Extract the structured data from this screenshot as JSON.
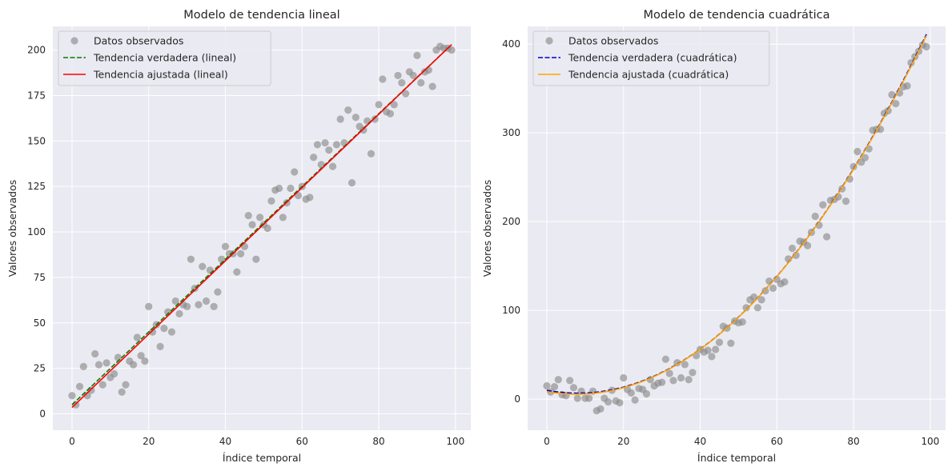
{
  "chart_data": [
    {
      "type": "scatter",
      "title": "Modelo de tendencia lineal",
      "xlabel": "Índice temporal",
      "ylabel": "Valores observados",
      "xlim": [
        -5,
        104
      ],
      "ylim": [
        -9,
        213
      ],
      "xticks": [
        0,
        20,
        40,
        60,
        80,
        100
      ],
      "xtick_labels": [
        "0",
        "20",
        "40",
        "60",
        "80",
        "100"
      ],
      "yticks": [
        0,
        25,
        50,
        75,
        100,
        125,
        150,
        175,
        200
      ],
      "ytick_labels": [
        "0",
        "25",
        "50",
        "75",
        "100",
        "125",
        "150",
        "175",
        "200"
      ],
      "grid": true,
      "legend_position": "top-left",
      "legend": [
        "Datos observados",
        "Tendencia verdadera (lineal)",
        "Tendencia ajustada (lineal)"
      ],
      "colors": {
        "scatter": "#8c8c8c",
        "true": "#008000",
        "fit": "#ff0000"
      },
      "scatter": {
        "name": "Datos observados",
        "x": [
          0,
          1,
          2,
          3,
          4,
          5,
          6,
          7,
          8,
          9,
          10,
          11,
          12,
          13,
          14,
          15,
          16,
          17,
          18,
          19,
          20,
          21,
          22,
          23,
          24,
          25,
          26,
          27,
          28,
          29,
          30,
          31,
          32,
          33,
          34,
          35,
          36,
          37,
          38,
          39,
          40,
          41,
          42,
          43,
          44,
          45,
          46,
          47,
          48,
          49,
          50,
          51,
          52,
          53,
          54,
          55,
          56,
          57,
          58,
          59,
          60,
          61,
          62,
          63,
          64,
          65,
          66,
          67,
          68,
          69,
          70,
          71,
          72,
          73,
          74,
          75,
          76,
          77,
          78,
          79,
          80,
          81,
          82,
          83,
          84,
          85,
          86,
          87,
          88,
          89,
          90,
          91,
          92,
          93,
          94,
          95,
          96,
          97,
          98,
          99
        ],
        "y": [
          10,
          5,
          15,
          26,
          10,
          13,
          33,
          27,
          16,
          28,
          20,
          22,
          31,
          12,
          16,
          29,
          27,
          42,
          32,
          29,
          59,
          45,
          49,
          37,
          47,
          56,
          45,
          62,
          55,
          60,
          59,
          85,
          69,
          60,
          81,
          62,
          79,
          59,
          67,
          85,
          92,
          88,
          88,
          78,
          88,
          92,
          109,
          104,
          85,
          108,
          104,
          102,
          117,
          123,
          124,
          108,
          116,
          124,
          133,
          120,
          125,
          118,
          119,
          141,
          148,
          137,
          149,
          145,
          136,
          148,
          162,
          149,
          167,
          127,
          163,
          158,
          156,
          161,
          143,
          162,
          170,
          184,
          166,
          165,
          170,
          186,
          182,
          176,
          188,
          186,
          197,
          182,
          188,
          189,
          180,
          200,
          202,
          201,
          201,
          200
        ]
      },
      "lines": [
        {
          "name": "Tendencia verdadera (lineal)",
          "style": "dashed",
          "x": [
            0,
            99
          ],
          "y": [
            5,
            203
          ]
        },
        {
          "name": "Tendencia ajustada (lineal)",
          "style": "solid",
          "x": [
            0,
            99
          ],
          "y": [
            3.5,
            203
          ]
        }
      ]
    },
    {
      "type": "scatter",
      "title": "Modelo de tendencia cuadrática",
      "xlabel": "Índice temporal",
      "ylabel": "Valores observados",
      "xlim": [
        -5,
        104
      ],
      "ylim": [
        -35,
        420
      ],
      "xticks": [
        0,
        20,
        40,
        60,
        80,
        100
      ],
      "xtick_labels": [
        "0",
        "20",
        "40",
        "60",
        "80",
        "100"
      ],
      "yticks": [
        0,
        100,
        200,
        300,
        400
      ],
      "ytick_labels": [
        "0",
        "100",
        "200",
        "300",
        "400"
      ],
      "grid": true,
      "legend_position": "top-left",
      "legend": [
        "Datos observados",
        "Tendencia verdadera (cuadrática)",
        "Tendencia ajustada (cuadrática)"
      ],
      "colors": {
        "scatter": "#8c8c8c",
        "true": "#0000cc",
        "fit": "#ffa500"
      },
      "scatter": {
        "name": "Datos observados",
        "x": [
          0,
          1,
          2,
          3,
          4,
          5,
          6,
          7,
          8,
          9,
          10,
          11,
          12,
          13,
          14,
          15,
          16,
          17,
          18,
          19,
          20,
          21,
          22,
          23,
          24,
          25,
          26,
          27,
          28,
          29,
          30,
          31,
          32,
          33,
          34,
          35,
          36,
          37,
          38,
          39,
          40,
          41,
          42,
          43,
          44,
          45,
          46,
          47,
          48,
          49,
          50,
          51,
          52,
          53,
          54,
          55,
          56,
          57,
          58,
          59,
          60,
          61,
          62,
          63,
          64,
          65,
          66,
          67,
          68,
          69,
          70,
          71,
          72,
          73,
          74,
          75,
          76,
          77,
          78,
          79,
          80,
          81,
          82,
          83,
          84,
          85,
          86,
          87,
          88,
          89,
          90,
          91,
          92,
          93,
          94,
          95,
          96,
          97,
          98,
          99
        ],
        "y": [
          15,
          8,
          14,
          22,
          5,
          4,
          21,
          13,
          1,
          9,
          1,
          1,
          9,
          -13,
          -11,
          1,
          -3,
          10,
          -2,
          -4,
          24,
          11,
          7,
          -1,
          12,
          11,
          6,
          22,
          15,
          18,
          19,
          45,
          29,
          21,
          41,
          24,
          39,
          22,
          30,
          49,
          56,
          53,
          55,
          48,
          56,
          64,
          82,
          80,
          63,
          88,
          86,
          87,
          103,
          112,
          115,
          103,
          112,
          122,
          133,
          125,
          135,
          130,
          132,
          158,
          170,
          162,
          178,
          177,
          173,
          188,
          206,
          196,
          219,
          183,
          224,
          225,
          228,
          237,
          223,
          248,
          262,
          279,
          267,
          272,
          282,
          303,
          304,
          304,
          322,
          325,
          343,
          333,
          345,
          352,
          353,
          379,
          386,
          392,
          399,
          397
        ]
      },
      "lines": [
        {
          "name": "Tendencia verdadera (cuadrática)",
          "style": "dashed",
          "quad": [
            10,
            -0.8,
            0.049
          ],
          "xrange": [
            0,
            99
          ]
        },
        {
          "name": "Tendencia ajustada (cuadrática)",
          "style": "solid",
          "quad": [
            8.5,
            -0.75,
            0.0485
          ],
          "xrange": [
            0,
            99
          ]
        }
      ]
    }
  ]
}
